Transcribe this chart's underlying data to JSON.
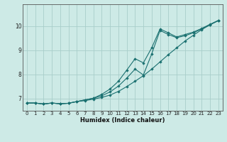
{
  "title": "",
  "xlabel": "Humidex (Indice chaleur)",
  "ylabel": "",
  "bg_color": "#cdeae6",
  "grid_color": "#a8ceca",
  "line_color": "#1a7070",
  "xlim": [
    -0.5,
    23.5
  ],
  "ylim": [
    6.5,
    10.9
  ],
  "xticks": [
    0,
    1,
    2,
    3,
    4,
    5,
    6,
    7,
    8,
    9,
    10,
    11,
    12,
    13,
    14,
    15,
    16,
    17,
    18,
    19,
    20,
    21,
    22,
    23
  ],
  "yticks": [
    7,
    8,
    9,
    10
  ],
  "line1_x": [
    0,
    1,
    2,
    3,
    4,
    5,
    6,
    7,
    8,
    9,
    10,
    11,
    12,
    13,
    14,
    15,
    16,
    17,
    18,
    19,
    20,
    21,
    22,
    23
  ],
  "line1_y": [
    6.82,
    6.82,
    6.78,
    6.82,
    6.79,
    6.81,
    6.88,
    6.92,
    6.98,
    7.05,
    7.15,
    7.3,
    7.5,
    7.72,
    7.95,
    8.22,
    8.52,
    8.82,
    9.1,
    9.38,
    9.62,
    9.85,
    10.05,
    10.22
  ],
  "line2_x": [
    0,
    1,
    2,
    3,
    4,
    5,
    6,
    7,
    8,
    9,
    10,
    11,
    12,
    13,
    14,
    15,
    16,
    17,
    18,
    19,
    20,
    21,
    22,
    23
  ],
  "line2_y": [
    6.82,
    6.82,
    6.78,
    6.82,
    6.79,
    6.81,
    6.88,
    6.95,
    7.02,
    7.12,
    7.28,
    7.52,
    7.85,
    8.22,
    7.98,
    8.85,
    9.82,
    9.65,
    9.52,
    9.6,
    9.72,
    9.88,
    10.06,
    10.23
  ],
  "line3_x": [
    0,
    1,
    2,
    3,
    4,
    5,
    6,
    7,
    8,
    9,
    10,
    11,
    12,
    13,
    14,
    15,
    16,
    17,
    18,
    19,
    20,
    21,
    22,
    23
  ],
  "line3_y": [
    6.82,
    6.82,
    6.78,
    6.82,
    6.79,
    6.81,
    6.88,
    6.95,
    7.02,
    7.18,
    7.4,
    7.72,
    8.18,
    8.65,
    8.48,
    9.1,
    9.88,
    9.72,
    9.55,
    9.65,
    9.75,
    9.9,
    10.07,
    10.23
  ]
}
